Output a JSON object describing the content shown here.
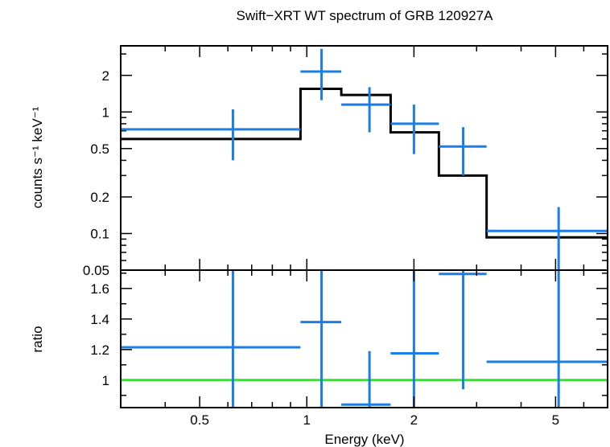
{
  "chart_data": {
    "type": "line",
    "title": "Swift−XRT WT spectrum of GRB 120927A",
    "xlabel": "Energy (keV)",
    "x_scale": "log",
    "xlim": [
      0.3,
      7.0
    ],
    "x_ticks": [
      {
        "value": 0.5,
        "label": "0.5"
      },
      {
        "value": 1,
        "label": "1"
      },
      {
        "value": 2,
        "label": "2"
      },
      {
        "value": 5,
        "label": "5"
      }
    ],
    "colors": {
      "data": "#1a7ee6",
      "model": "#000000",
      "unity": "#22ee22"
    },
    "top_panel": {
      "ylabel": "counts s⁻¹ keV⁻¹",
      "y_scale": "log",
      "ylim": [
        0.05,
        3.5
      ],
      "y_ticks": [
        {
          "value": 0.05,
          "label": "0.05"
        },
        {
          "value": 0.1,
          "label": "0.1"
        },
        {
          "value": 0.2,
          "label": "0.2"
        },
        {
          "value": 0.5,
          "label": "0.5"
        },
        {
          "value": 1,
          "label": "1"
        },
        {
          "value": 2,
          "label": "2"
        }
      ],
      "data": [
        {
          "x": 0.62,
          "x_lo": 0.3,
          "x_hi": 0.96,
          "y": 0.72,
          "y_lo": 0.4,
          "y_hi": 1.05
        },
        {
          "x": 1.1,
          "x_lo": 0.96,
          "x_hi": 1.25,
          "y": 2.15,
          "y_lo": 1.25,
          "y_hi": 3.3
        },
        {
          "x": 1.5,
          "x_lo": 1.25,
          "x_hi": 1.72,
          "y": 1.15,
          "y_lo": 0.68,
          "y_hi": 1.6
        },
        {
          "x": 2.0,
          "x_lo": 1.72,
          "x_hi": 2.35,
          "y": 0.8,
          "y_lo": 0.45,
          "y_hi": 1.15
        },
        {
          "x": 2.75,
          "x_lo": 2.35,
          "x_hi": 3.2,
          "y": 0.52,
          "y_lo": 0.3,
          "y_hi": 0.75
        },
        {
          "x": 5.1,
          "x_lo": 3.2,
          "x_hi": 7.0,
          "y": 0.105,
          "y_lo": 0.05,
          "y_hi": 0.165
        }
      ],
      "model": [
        {
          "x_lo": 0.3,
          "x_hi": 0.96,
          "y": 0.6
        },
        {
          "x_lo": 0.96,
          "x_hi": 1.25,
          "y": 1.55
        },
        {
          "x_lo": 1.25,
          "x_hi": 1.72,
          "y": 1.38
        },
        {
          "x_lo": 1.72,
          "x_hi": 2.35,
          "y": 0.68
        },
        {
          "x_lo": 2.35,
          "x_hi": 3.2,
          "y": 0.3
        },
        {
          "x_lo": 3.2,
          "x_hi": 7.0,
          "y": 0.093
        }
      ]
    },
    "bottom_panel": {
      "ylabel": "ratio",
      "y_scale": "linear",
      "ylim": [
        0.82,
        1.72
      ],
      "y_ticks": [
        {
          "value": 1,
          "label": "1"
        },
        {
          "value": 1.2,
          "label": "1.2"
        },
        {
          "value": 1.4,
          "label": "1.4"
        },
        {
          "value": 1.6,
          "label": "1.6"
        }
      ],
      "reference_line": 1.0,
      "data": [
        {
          "x": 0.62,
          "x_lo": 0.3,
          "x_hi": 0.96,
          "y": 1.215,
          "y_lo": 0.82,
          "y_hi": 1.72
        },
        {
          "x": 1.1,
          "x_lo": 0.96,
          "x_hi": 1.25,
          "y": 1.38,
          "y_lo": 0.82,
          "y_hi": 1.72
        },
        {
          "x": 1.5,
          "x_lo": 1.25,
          "x_hi": 1.72,
          "y": 0.84,
          "y_lo": 0.82,
          "y_hi": 1.19
        },
        {
          "x": 2.0,
          "x_lo": 1.72,
          "x_hi": 2.35,
          "y": 1.175,
          "y_lo": 0.82,
          "y_hi": 1.72
        },
        {
          "x": 2.75,
          "x_lo": 2.35,
          "x_hi": 3.2,
          "y": 1.695,
          "y_lo": 0.94,
          "y_hi": 1.72
        },
        {
          "x": 5.1,
          "x_lo": 3.2,
          "x_hi": 7.0,
          "y": 1.12,
          "y_lo": 0.82,
          "y_hi": 1.72
        }
      ]
    }
  }
}
